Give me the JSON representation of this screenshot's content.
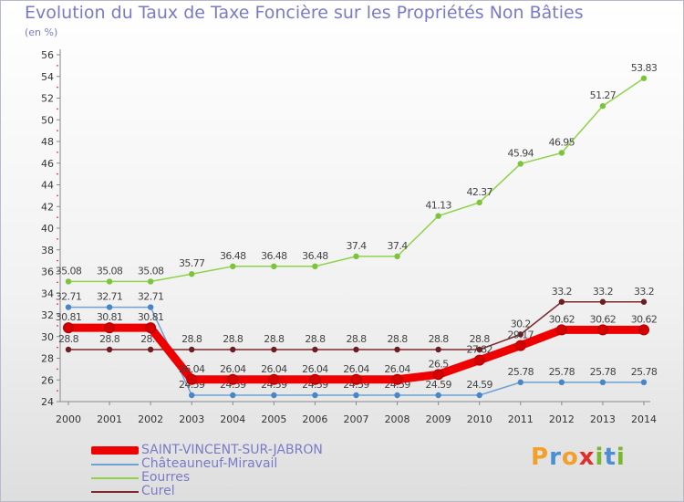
{
  "title": "Evolution du Taux de Taxe Foncière sur les Propriétés Non Bâties",
  "unit": "(en %)",
  "logo": {
    "text": "Proxiti",
    "colors": [
      "#f2a02a",
      "#4a8fd6",
      "#f2a02a",
      "#e0302a",
      "#77b82c",
      "#4a8fd6",
      "#77b82c"
    ]
  },
  "chart_data": {
    "type": "line",
    "title": "Evolution du Taux de Taxe Foncière sur les Propriétés Non Bâties",
    "ylabel": "(en %)",
    "xlabel": "",
    "ylim": [
      24,
      56
    ],
    "yticks": [
      24,
      26,
      28,
      30,
      32,
      34,
      36,
      38,
      40,
      42,
      44,
      46,
      48,
      50,
      52,
      54,
      56
    ],
    "grid": false,
    "legend": "bottom-left",
    "x": [
      "2000",
      "2001",
      "2002",
      "2003",
      "2004",
      "2005",
      "2006",
      "2007",
      "2008",
      "2009",
      "2010",
      "2011",
      "2012",
      "2013",
      "2014"
    ],
    "series": [
      {
        "name": "Curel",
        "color": "#7d2a2e",
        "marker": "#6b1f22",
        "values": [
          28.8,
          28.8,
          28.8,
          28.8,
          28.8,
          28.8,
          28.8,
          28.8,
          28.8,
          28.8,
          28.8,
          30.2,
          33.2,
          33.2,
          33.2
        ],
        "labels": [
          "28.8",
          "28.8",
          "28.8",
          "28.8",
          "28.8",
          "28.8",
          "28.8",
          "28.8",
          "28.8",
          "28.8",
          "28.8",
          "30.2",
          "33.2",
          "33.2",
          "33.2"
        ]
      },
      {
        "name": "Eourres",
        "color": "#8fd24a",
        "marker": "#7cc43b",
        "values": [
          35.08,
          35.08,
          35.08,
          35.77,
          36.48,
          36.48,
          36.48,
          37.4,
          37.4,
          41.13,
          42.37,
          45.94,
          46.95,
          51.27,
          53.83
        ],
        "labels": [
          "35.08",
          "35.08",
          "35.08",
          "35.77",
          "36.48",
          "36.48",
          "36.48",
          "37.4",
          "37.4",
          "41.13",
          "42.37",
          "45.94",
          "46.95",
          "51.27",
          "53.83"
        ]
      },
      {
        "name": "Châteauneuf-Miravail",
        "color": "#6ea2d4",
        "marker": "#4a86c6",
        "values": [
          32.71,
          32.71,
          32.71,
          24.59,
          24.59,
          24.59,
          24.59,
          24.59,
          24.59,
          24.59,
          24.59,
          25.78,
          25.78,
          25.78,
          25.78
        ],
        "labels": [
          "32.71",
          "32.71",
          "32.71",
          "24.59",
          "24.59",
          "24.59",
          "24.59",
          "24.59",
          "24.59",
          "24.59",
          "24.59",
          "25.78",
          "25.78",
          "25.78",
          "25.78"
        ]
      },
      {
        "name": "SAINT-VINCENT-SUR-JABRON",
        "color": "#ee0000",
        "marker": "#d40000",
        "values": [
          30.81,
          30.81,
          30.81,
          26.04,
          26.04,
          26.04,
          26.04,
          26.04,
          26.04,
          26.5,
          27.82,
          29.17,
          30.62,
          30.62,
          30.62
        ],
        "labels": [
          "30.81",
          "30.81",
          "30.81",
          "26.04",
          "26.04",
          "26.04",
          "26.04",
          "26.04",
          "26.04",
          "26.5",
          "27.82",
          "29.17",
          "30.62",
          "30.62",
          "30.62"
        ]
      }
    ]
  },
  "legend_items": [
    {
      "name": "SAINT-VINCENT-SUR-JABRON",
      "color": "#ee0000"
    },
    {
      "name": "Châteauneuf-Miravail",
      "color": "#6ea2d4"
    },
    {
      "name": "Eourres",
      "color": "#8fd24a"
    },
    {
      "name": "Curel",
      "color": "#7d2a2e"
    }
  ]
}
